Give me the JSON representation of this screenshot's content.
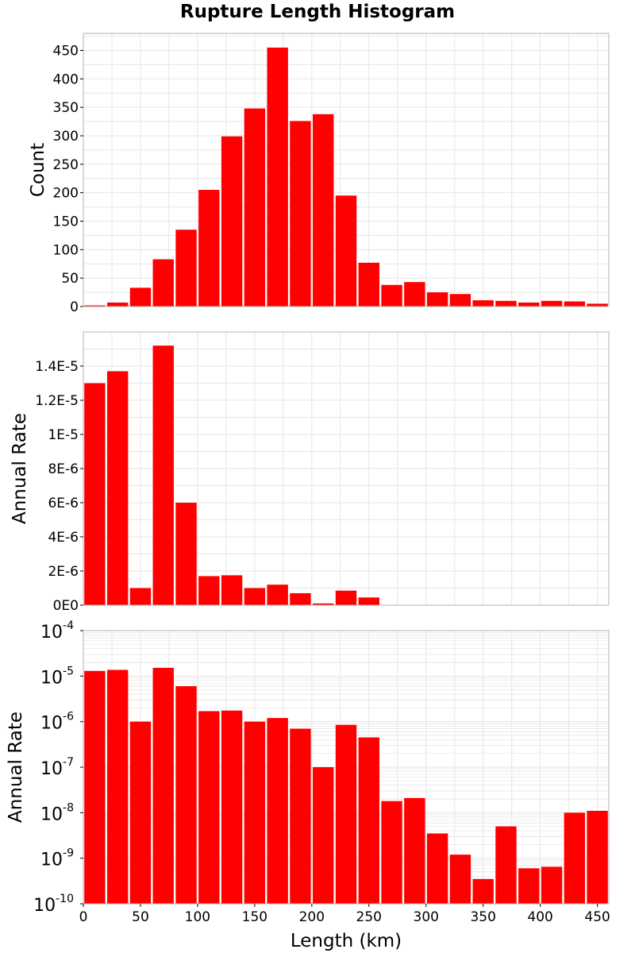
{
  "title": "Rupture Length Histogram",
  "colors": {
    "bar": "#ff0000",
    "grid": "#e6e6e6",
    "frame": "#b3b3b3"
  },
  "chart_data": [
    {
      "type": "bar",
      "title": "Rupture Length Histogram",
      "xlabel": "",
      "ylabel": "Count",
      "xlim": [
        0,
        460
      ],
      "ylim": [
        0,
        480
      ],
      "bin_width": 20,
      "x": [
        10,
        30,
        50,
        70,
        90,
        110,
        130,
        150,
        170,
        190,
        210,
        230,
        250,
        270,
        290,
        310,
        330,
        350,
        370,
        390,
        410,
        430,
        450
      ],
      "values": [
        2,
        7,
        33,
        83,
        135,
        205,
        299,
        348,
        455,
        326,
        338,
        195,
        77,
        38,
        43,
        25,
        22,
        11,
        10,
        7,
        10,
        9,
        5
      ],
      "yticks": [
        0,
        50,
        100,
        150,
        200,
        250,
        300,
        350,
        400,
        450
      ],
      "ytick_labels": [
        "0",
        "50",
        "100",
        "150",
        "200",
        "250",
        "300",
        "350",
        "400",
        "450"
      ],
      "grid": true
    },
    {
      "type": "bar",
      "xlabel": "",
      "ylabel": "Annual Rate",
      "xlim": [
        0,
        460
      ],
      "ylim": [
        0,
        1.6e-05
      ],
      "bin_width": 20,
      "x": [
        10,
        30,
        50,
        70,
        90,
        110,
        130,
        150,
        170,
        190,
        210,
        230,
        250,
        270,
        290,
        310,
        330,
        350,
        370,
        390,
        410,
        430,
        450
      ],
      "values": [
        1.3e-05,
        1.37e-05,
        1e-06,
        1.52e-05,
        6e-06,
        1.7e-06,
        1.75e-06,
        1e-06,
        1.2e-06,
        7e-07,
        1e-07,
        8.5e-07,
        4.5e-07,
        1.8e-08,
        2.1e-08,
        3.5e-09,
        1.2e-09,
        3.5e-10,
        5e-09,
        6e-10,
        6.5e-10,
        1e-08,
        1.1e-08
      ],
      "yticks": [
        0,
        2e-06,
        4e-06,
        6e-06,
        8e-06,
        1e-05,
        1.2e-05,
        1.4e-05
      ],
      "ytick_labels": [
        "0E0",
        "2E-6",
        "4E-6",
        "6E-6",
        "8E-6",
        "1E-5",
        "1.2E-5",
        "1.4E-5"
      ],
      "grid": true
    },
    {
      "type": "bar",
      "xlabel": "Length (km)",
      "ylabel": "Annual Rate",
      "yscale": "log",
      "xlim": [
        0,
        460
      ],
      "ylim": [
        1e-10,
        0.0001
      ],
      "bin_width": 20,
      "x": [
        10,
        30,
        50,
        70,
        90,
        110,
        130,
        150,
        170,
        190,
        210,
        230,
        250,
        270,
        290,
        310,
        330,
        350,
        370,
        390,
        410,
        430,
        450
      ],
      "values": [
        1.3e-05,
        1.37e-05,
        1e-06,
        1.52e-05,
        6e-06,
        1.7e-06,
        1.75e-06,
        1e-06,
        1.2e-06,
        7e-07,
        1e-07,
        8.5e-07,
        4.5e-07,
        1.8e-08,
        2.1e-08,
        3.5e-09,
        1.2e-09,
        3.5e-10,
        5e-09,
        6e-10,
        6.5e-10,
        1e-08,
        1.1e-08
      ],
      "ytick_exponents": [
        "-4",
        "-5",
        "-6",
        "-7",
        "-8",
        "-9",
        "-10"
      ],
      "ytick_base": "10",
      "xticks": [
        0,
        50,
        100,
        150,
        200,
        250,
        300,
        350,
        400,
        450
      ],
      "xtick_labels": [
        "0",
        "50",
        "100",
        "150",
        "200",
        "250",
        "300",
        "350",
        "400",
        "450"
      ],
      "grid": true
    }
  ]
}
